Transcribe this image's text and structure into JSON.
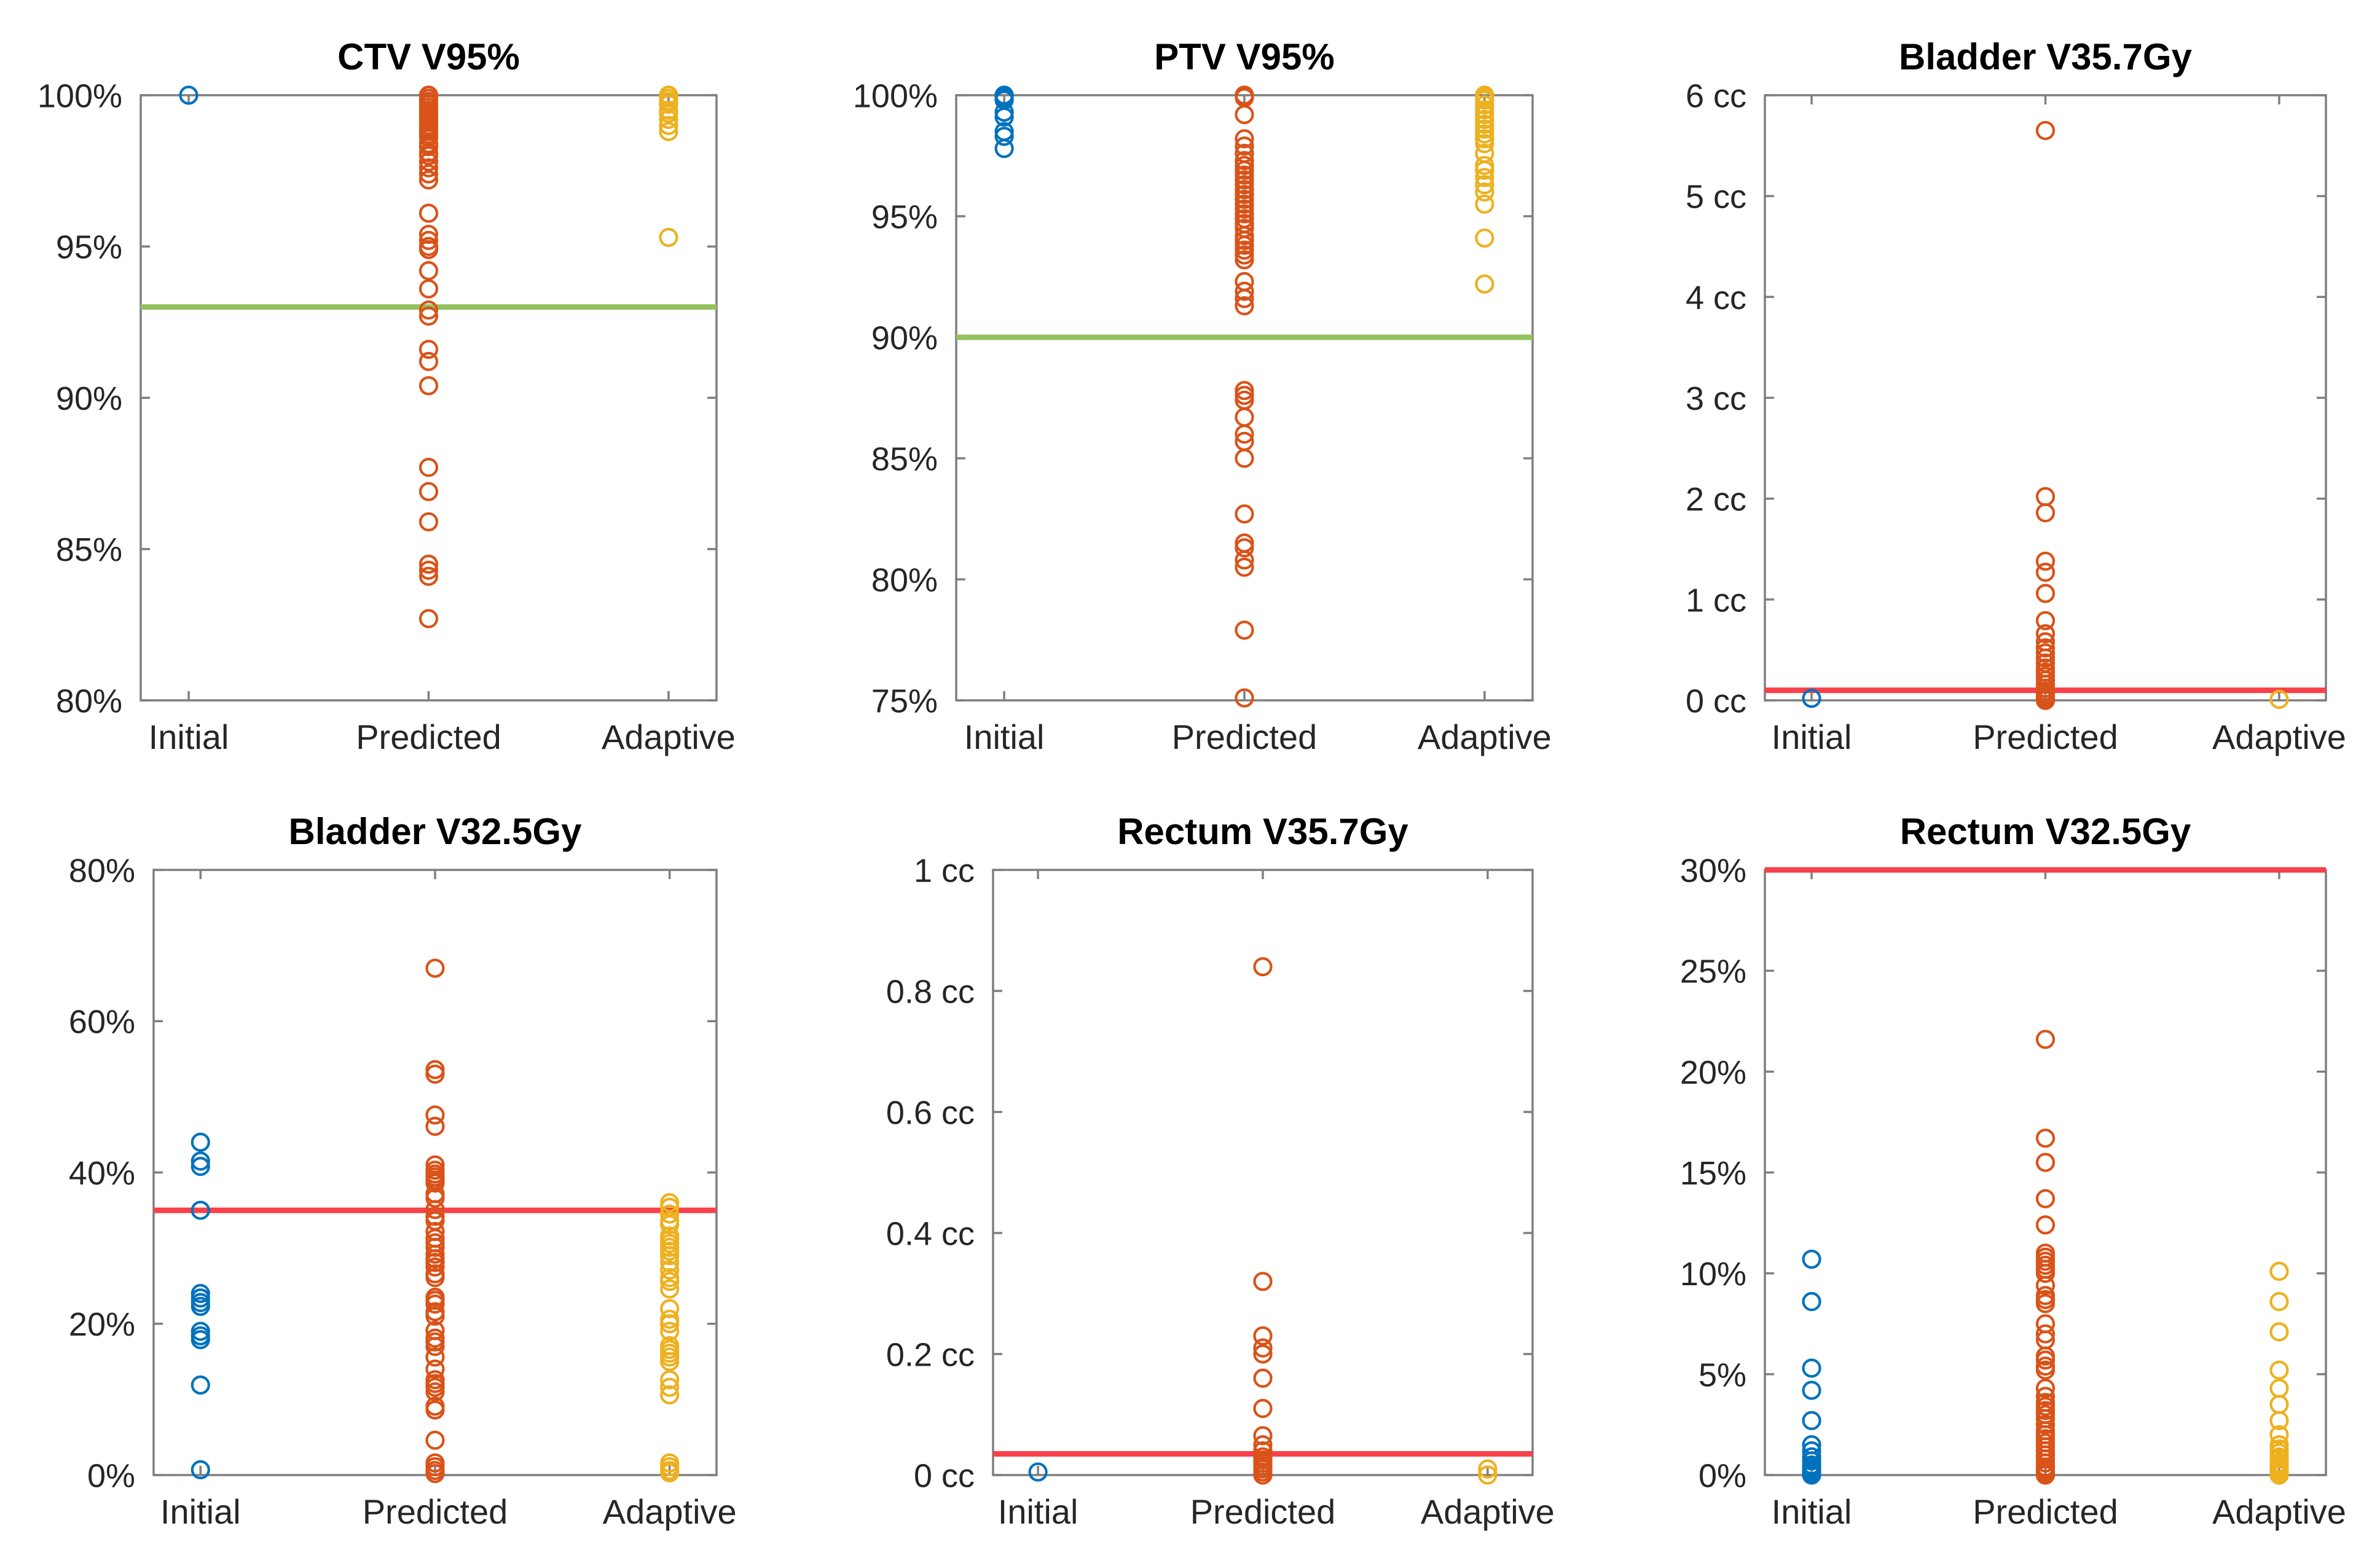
{
  "figure": {
    "background": "#ffffff",
    "categories": [
      "Initial",
      "Predicted",
      "Adaptive"
    ],
    "series_colors": {
      "initial": "#0072BD",
      "predicted": "#D95319",
      "adaptive": "#EDB120"
    },
    "threshold_green": "#93C25F",
    "threshold_red": "#F8414A",
    "axis_color": "#7F7F7F",
    "text_color": "#262626"
  },
  "chart_data": [
    {
      "type": "scatter",
      "title": "CTV V95%",
      "ylabel": "",
      "xlabel": "",
      "unit": "%",
      "ylim": [
        80,
        100
      ],
      "yticks": [
        {
          "v": 80,
          "label": "80%"
        },
        {
          "v": 85,
          "label": "85%"
        },
        {
          "v": 90,
          "label": "90%"
        },
        {
          "v": 95,
          "label": "95%"
        },
        {
          "v": 100,
          "label": "100%"
        }
      ],
      "categories": [
        "Initial",
        "Predicted",
        "Adaptive"
      ],
      "threshold": {
        "value": 93,
        "color": "#93C25F"
      },
      "series": [
        {
          "name": "Initial",
          "values": [
            100
          ]
        },
        {
          "name": "Predicted",
          "values": [
            100,
            100,
            99.9,
            99.8,
            99.7,
            99.6,
            99.5,
            99.4,
            99.3,
            99.2,
            99.1,
            99.0,
            98.9,
            98.8,
            98.7,
            98.6,
            98.4,
            98.3,
            98.1,
            98.0,
            97.8,
            97.6,
            97.4,
            97.2,
            96.1,
            95.4,
            95.2,
            95.0,
            94.9,
            94.2,
            93.6,
            92.9,
            92.7,
            91.6,
            91.2,
            90.4,
            87.7,
            86.9,
            85.9,
            84.5,
            84.3,
            84.1,
            82.7
          ]
        },
        {
          "name": "Adaptive",
          "values": [
            100,
            100,
            99.9,
            99.8,
            99.7,
            99.5,
            99.4,
            99.2,
            99.0,
            98.8,
            95.3
          ]
        }
      ]
    },
    {
      "type": "scatter",
      "title": "PTV V95%",
      "ylabel": "",
      "xlabel": "",
      "unit": "%",
      "ylim": [
        75,
        100
      ],
      "yticks": [
        {
          "v": 75,
          "label": "75%"
        },
        {
          "v": 80,
          "label": "80%"
        },
        {
          "v": 85,
          "label": "85%"
        },
        {
          "v": 90,
          "label": "90%"
        },
        {
          "v": 95,
          "label": "95%"
        },
        {
          "v": 100,
          "label": "100%"
        }
      ],
      "categories": [
        "Initial",
        "Predicted",
        "Adaptive"
      ],
      "threshold": {
        "value": 90,
        "color": "#93C25F"
      },
      "series": [
        {
          "name": "Initial",
          "values": [
            100,
            100,
            99.9,
            99.8,
            99.3,
            99.1,
            98.5,
            98.3,
            97.8
          ]
        },
        {
          "name": "Predicted",
          "values": [
            100,
            100,
            99.9,
            99.2,
            98.2,
            97.9,
            97.6,
            97.3,
            97.1,
            96.9,
            96.7,
            96.5,
            96.3,
            96.1,
            95.9,
            95.7,
            95.5,
            95.3,
            95.1,
            94.9,
            94.7,
            94.5,
            94.2,
            94.0,
            93.8,
            93.6,
            93.4,
            93.2,
            92.3,
            91.9,
            91.6,
            91.3,
            87.8,
            87.6,
            87.4,
            86.7,
            86.0,
            85.7,
            85.0,
            82.7,
            81.5,
            81.3,
            80.8,
            80.5,
            77.9,
            75.1
          ]
        },
        {
          "name": "Adaptive",
          "values": [
            100,
            100,
            99.9,
            99.8,
            99.6,
            99.4,
            99.2,
            99.0,
            98.8,
            98.6,
            98.4,
            98.2,
            98.0,
            97.6,
            97.1,
            96.9,
            96.6,
            96.3,
            96.0,
            95.5,
            94.1,
            92.2
          ]
        }
      ]
    },
    {
      "type": "scatter",
      "title": "Bladder V35.7Gy",
      "ylabel": "",
      "xlabel": "",
      "unit": "cc",
      "ylim": [
        0,
        6
      ],
      "yticks": [
        {
          "v": 0,
          "label": "0 cc"
        },
        {
          "v": 1,
          "label": "1 cc"
        },
        {
          "v": 2,
          "label": "2 cc"
        },
        {
          "v": 3,
          "label": "3 cc"
        },
        {
          "v": 4,
          "label": "4 cc"
        },
        {
          "v": 5,
          "label": "5 cc"
        },
        {
          "v": 6,
          "label": "6 cc"
        }
      ],
      "categories": [
        "Initial",
        "Predicted",
        "Adaptive"
      ],
      "threshold": {
        "value": 0.1,
        "color": "#F8414A"
      },
      "series": [
        {
          "name": "Initial",
          "values": [
            0.02
          ]
        },
        {
          "name": "Predicted",
          "values": [
            5.65,
            2.02,
            1.86,
            1.38,
            1.27,
            1.06,
            0.79,
            0.66,
            0.58,
            0.52,
            0.47,
            0.42,
            0.37,
            0.32,
            0.28,
            0.24,
            0.2,
            0.16,
            0.12,
            0.09,
            0.06,
            0.04,
            0.03,
            0.02,
            0.01,
            0.01,
            0,
            0
          ]
        },
        {
          "name": "Adaptive",
          "values": [
            0.01
          ]
        }
      ]
    },
    {
      "type": "scatter",
      "title": "Bladder V32.5Gy",
      "ylabel": "",
      "xlabel": "",
      "unit": "%",
      "ylim": [
        0,
        80
      ],
      "yticks": [
        {
          "v": 0,
          "label": "0%"
        },
        {
          "v": 20,
          "label": "20%"
        },
        {
          "v": 40,
          "label": "40%"
        },
        {
          "v": 60,
          "label": "60%"
        },
        {
          "v": 80,
          "label": "80%"
        }
      ],
      "categories": [
        "Initial",
        "Predicted",
        "Adaptive"
      ],
      "threshold": {
        "value": 35,
        "color": "#F8414A"
      },
      "series": [
        {
          "name": "Initial",
          "values": [
            44,
            41.5,
            40.8,
            35,
            24,
            23.4,
            22.8,
            22.3,
            19,
            18.4,
            17.9,
            11.9,
            0.7
          ]
        },
        {
          "name": "Predicted",
          "values": [
            67,
            53.6,
            53,
            47.6,
            46.1,
            41,
            40.3,
            39.8,
            39.4,
            39,
            38.6,
            37.2,
            36.6,
            35.1,
            34.2,
            33.6,
            32.2,
            31.3,
            30.7,
            30.1,
            29.2,
            28.6,
            28.1,
            27.5,
            26.6,
            26.1,
            23.5,
            23.1,
            22.6,
            21.6,
            21,
            19.1,
            18.1,
            17.6,
            17,
            15.6,
            14,
            12.6,
            12.1,
            11.6,
            11,
            9.1,
            8.6,
            4.6,
            1.6,
            1.1,
            0.6,
            0.2
          ]
        },
        {
          "name": "Adaptive",
          "values": [
            36,
            35.4,
            34.5,
            33.6,
            33.1,
            31.6,
            31.1,
            30.6,
            30.1,
            29.6,
            29,
            28.1,
            27.1,
            26.1,
            25.6,
            24.6,
            22,
            20.6,
            20,
            19,
            17.1,
            16.6,
            16.1,
            15.6,
            15,
            12.6,
            11.6,
            10.6,
            1.6,
            1.1,
            0.6,
            0.3
          ]
        }
      ]
    },
    {
      "type": "scatter",
      "title": "Rectum V35.7Gy",
      "ylabel": "",
      "xlabel": "",
      "unit": "cc",
      "ylim": [
        0,
        1
      ],
      "yticks": [
        {
          "v": 0,
          "label": "0 cc"
        },
        {
          "v": 0.2,
          "label": "0.2 cc"
        },
        {
          "v": 0.4,
          "label": "0.4 cc"
        },
        {
          "v": 0.6,
          "label": "0.6 cc"
        },
        {
          "v": 0.8,
          "label": "0.8 cc"
        },
        {
          "v": 1,
          "label": "1 cc"
        }
      ],
      "categories": [
        "Initial",
        "Predicted",
        "Adaptive"
      ],
      "threshold": {
        "value": 0.035,
        "color": "#F8414A"
      },
      "series": [
        {
          "name": "Initial",
          "values": [
            0.005
          ]
        },
        {
          "name": "Predicted",
          "values": [
            0.84,
            0.32,
            0.23,
            0.21,
            0.2,
            0.16,
            0.11,
            0.065,
            0.05,
            0.04,
            0.03,
            0.025,
            0.02,
            0.015,
            0.01,
            0.005,
            0
          ]
        },
        {
          "name": "Adaptive",
          "values": [
            0.01,
            0
          ]
        }
      ]
    },
    {
      "type": "scatter",
      "title": "Rectum V32.5Gy",
      "ylabel": "",
      "xlabel": "",
      "unit": "%",
      "ylim": [
        0,
        30
      ],
      "yticks": [
        {
          "v": 0,
          "label": "0%"
        },
        {
          "v": 5,
          "label": "5%"
        },
        {
          "v": 10,
          "label": "10%"
        },
        {
          "v": 15,
          "label": "15%"
        },
        {
          "v": 20,
          "label": "20%"
        },
        {
          "v": 25,
          "label": "25%"
        },
        {
          "v": 30,
          "label": "30%"
        }
      ],
      "categories": [
        "Initial",
        "Predicted",
        "Adaptive"
      ],
      "threshold": {
        "value": 30,
        "color": "#F8414A"
      },
      "series": [
        {
          "name": "Initial",
          "values": [
            10.7,
            8.6,
            5.3,
            4.2,
            2.7,
            1.5,
            1.2,
            0.9,
            0.7,
            0.5,
            0.4,
            0.3,
            0.2,
            0.1,
            0
          ]
        },
        {
          "name": "Predicted",
          "values": [
            21.6,
            16.7,
            15.5,
            13.7,
            12.4,
            11.0,
            10.8,
            10.6,
            10.4,
            10.2,
            10.0,
            9.4,
            8.9,
            8.7,
            8.5,
            7.5,
            7.0,
            6.7,
            5.9,
            5.7,
            5.4,
            5.2,
            4.3,
            3.9,
            3.6,
            3.4,
            3.2,
            3.0,
            2.8,
            2.5,
            2.2,
            2.0,
            1.8,
            1.6,
            1.4,
            1.2,
            1.0,
            0.8,
            0.6,
            0.4,
            0.3,
            0.2,
            0.1,
            0,
            0
          ]
        },
        {
          "name": "Adaptive",
          "values": [
            10.1,
            8.6,
            7.1,
            5.2,
            4.3,
            3.5,
            2.7,
            2.0,
            1.5,
            1.3,
            1.1,
            0.9,
            0.8,
            0.6,
            0.5,
            0.4,
            0.3,
            0.2,
            0.1,
            0,
            0
          ]
        }
      ]
    }
  ]
}
